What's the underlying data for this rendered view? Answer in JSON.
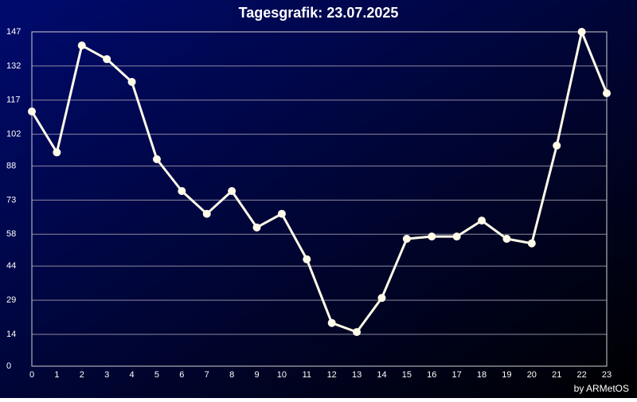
{
  "chart_data": {
    "type": "line",
    "title": "Tagesgrafik: 23.07.2025",
    "footer": "by ARMetOS",
    "x": [
      0,
      1,
      2,
      3,
      4,
      5,
      6,
      7,
      8,
      9,
      10,
      11,
      12,
      13,
      14,
      15,
      16,
      17,
      18,
      19,
      20,
      21,
      22,
      23
    ],
    "series": [
      {
        "color": "#fffbe8",
        "values": [
          112,
          94,
          141,
          135,
          125,
          91,
          77,
          67,
          77,
          61,
          67,
          47,
          19,
          15,
          30,
          56,
          57,
          57,
          64,
          56,
          54,
          97,
          147,
          120
        ]
      }
    ],
    "xlim": [
      0,
      23
    ],
    "xticks": [
      0,
      1,
      2,
      3,
      4,
      5,
      6,
      7,
      8,
      9,
      10,
      11,
      12,
      13,
      14,
      15,
      16,
      17,
      18,
      19,
      20,
      21,
      22,
      23
    ],
    "ylim": [
      0,
      147
    ],
    "yticks": [
      0,
      14,
      29,
      44,
      58,
      73,
      88,
      102,
      117,
      132,
      147
    ],
    "grid": true
  }
}
